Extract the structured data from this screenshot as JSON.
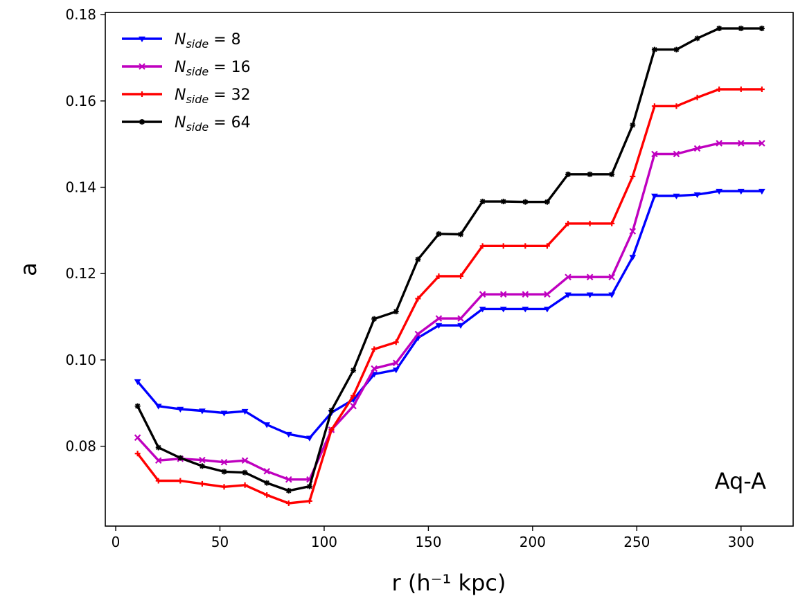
{
  "chart_data": {
    "type": "line",
    "title": "",
    "xlabel": "r (h⁻¹ kpc)",
    "ylabel": "a",
    "xlim": [
      -5,
      325
    ],
    "ylim": [
      0.0615,
      0.1805
    ],
    "xticks": [
      0,
      50,
      100,
      150,
      200,
      250,
      300
    ],
    "yticks": [
      0.08,
      0.1,
      0.12,
      0.14,
      0.16,
      0.18
    ],
    "ytick_labels": [
      "0.08",
      "0.10",
      "0.12",
      "0.14",
      "0.16",
      "0.18"
    ],
    "grid": false,
    "legend_position": "top-left",
    "annotation": "Aq-A",
    "x": [
      10.5,
      20.5,
      31,
      41.5,
      52,
      62,
      72.5,
      83,
      93,
      103.5,
      114,
      124,
      134.5,
      145,
      155,
      165.5,
      176,
      186,
      196.5,
      207,
      217,
      227.5,
      238,
      248,
      258.5,
      269,
      279,
      289.5,
      300,
      310
    ],
    "series": [
      {
        "name": "N_side = 8",
        "label_main": "N",
        "label_sub": "side",
        "label_rest": " = 8",
        "color": "#0000ff",
        "marker": "tri",
        "values": [
          0.095,
          0.0893,
          0.0886,
          0.0882,
          0.0877,
          0.0881,
          0.085,
          0.0828,
          0.0819,
          0.0878,
          0.0908,
          0.0967,
          0.0977,
          0.1051,
          0.108,
          0.108,
          0.1118,
          0.1118,
          0.1118,
          0.1118,
          0.1151,
          0.1151,
          0.1151,
          0.1238,
          0.138,
          0.138,
          0.1383,
          0.1391,
          0.1391,
          0.1391
        ]
      },
      {
        "name": "N_side = 16",
        "label_main": "N",
        "label_sub": "side",
        "label_rest": " = 16",
        "color": "#bf00bf",
        "marker": "x",
        "values": [
          0.082,
          0.0767,
          0.0771,
          0.0768,
          0.0763,
          0.0767,
          0.0742,
          0.0723,
          0.0723,
          0.0838,
          0.0893,
          0.098,
          0.0993,
          0.106,
          0.1096,
          0.1096,
          0.1152,
          0.1152,
          0.1152,
          0.1152,
          0.1192,
          0.1192,
          0.1192,
          0.1298,
          0.1477,
          0.1477,
          0.149,
          0.1502,
          0.1502,
          0.1502
        ]
      },
      {
        "name": "N_side = 32",
        "label_main": "N",
        "label_sub": "side",
        "label_rest": " = 32",
        "color": "#ff0000",
        "marker": "plus",
        "values": [
          0.0783,
          0.072,
          0.072,
          0.0713,
          0.0706,
          0.071,
          0.0687,
          0.0668,
          0.0673,
          0.0838,
          0.0917,
          0.1025,
          0.1041,
          0.1142,
          0.1194,
          0.1194,
          0.1264,
          0.1264,
          0.1264,
          0.1264,
          0.1316,
          0.1316,
          0.1316,
          0.1425,
          0.1588,
          0.1588,
          0.1608,
          0.1627,
          0.1627,
          0.1627
        ]
      },
      {
        "name": "N_side = 64",
        "label_main": "N",
        "label_sub": "side",
        "label_rest": " = 64",
        "color": "#000000",
        "marker": "star",
        "values": [
          0.0893,
          0.0797,
          0.0773,
          0.0754,
          0.0741,
          0.0739,
          0.0715,
          0.0697,
          0.0707,
          0.0883,
          0.0976,
          0.1095,
          0.1112,
          0.1233,
          0.1292,
          0.1291,
          0.1367,
          0.1367,
          0.1366,
          0.1366,
          0.143,
          0.143,
          0.143,
          0.1544,
          0.1719,
          0.1719,
          0.1745,
          0.1768,
          0.1768,
          0.1768
        ]
      }
    ]
  }
}
